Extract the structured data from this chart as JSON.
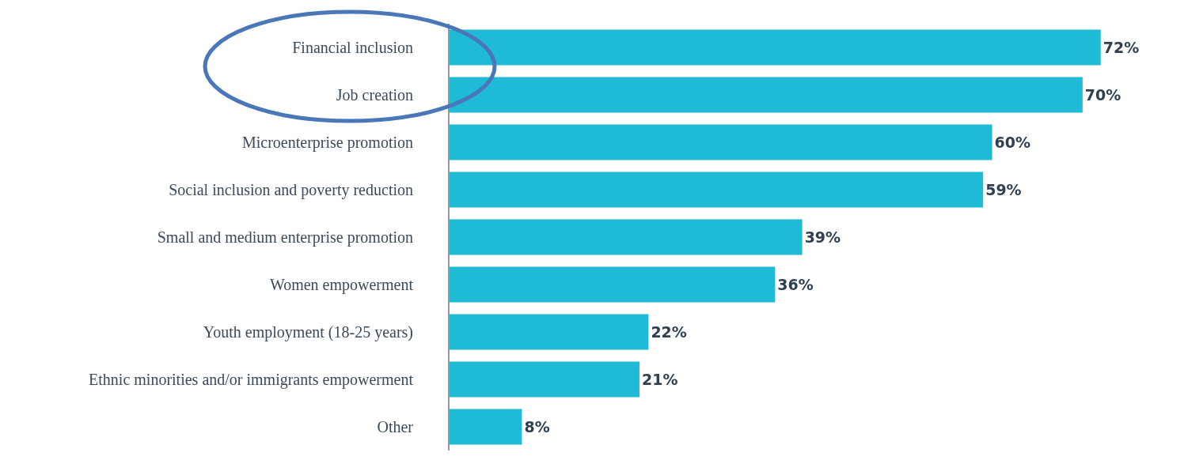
{
  "chart_data": {
    "type": "bar",
    "orientation": "horizontal",
    "categories": [
      "Financial inclusion",
      "Job creation",
      "Microenterprise promotion",
      "Social inclusion and poverty reduction",
      "Small and medium enterprise promotion",
      "Women empowerment",
      "Youth employment (18-25 years)",
      "Ethnic minorities and/or immigrants empowerment",
      "Other"
    ],
    "values": [
      72,
      70,
      60,
      59,
      39,
      36,
      22,
      21,
      8
    ],
    "value_labels": [
      "72%",
      "70%",
      "60%",
      "59%",
      "39%",
      "36%",
      "22%",
      "21%",
      "8%"
    ],
    "color": "#1fbad6"
  }
}
